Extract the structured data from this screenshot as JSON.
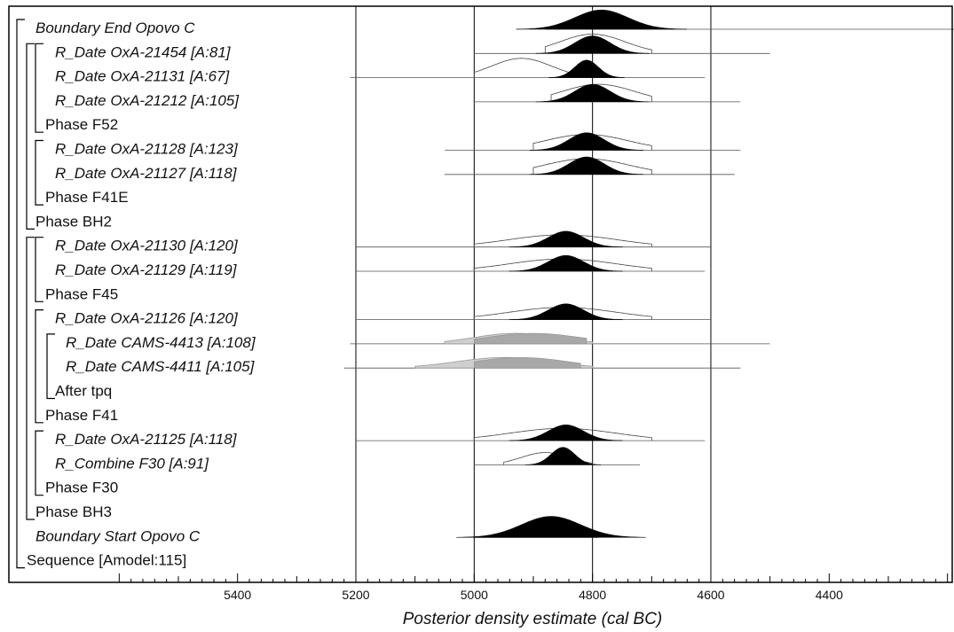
{
  "chart_data": {
    "type": "oxcal-multiplot",
    "xlabel": "Posterior density estimate (cal BC)",
    "xlim": [
      5600,
      4000
    ],
    "x_major_ticks": [
      5400,
      5200,
      5000,
      4800,
      4600,
      4400
    ],
    "x_tick_labels": [
      "5400",
      "5200",
      "5000",
      "4800",
      "4600",
      "4400"
    ],
    "gridlines": [
      5200,
      5000,
      4800,
      4600
    ],
    "rows": [
      {
        "label": "Boundary End Opovo C",
        "italic": true,
        "indent": 1,
        "type": "boundary",
        "span": [
          4880,
          4000
        ],
        "post": {
          "center": 4785,
          "width": 45,
          "height": 0.55
        }
      },
      {
        "label": "R_Date OxA-21454 [A:81]",
        "italic": true,
        "indent": 3,
        "type": "date",
        "span": [
          5000,
          4500
        ],
        "prior": {
          "center": 4800,
          "width": 55,
          "height": 0.55,
          "start": 4880,
          "end": 4700
        },
        "post": {
          "center": 4800,
          "width": 30,
          "height": 0.5
        }
      },
      {
        "label": "R_Date OxA-21131 [A:67]",
        "italic": true,
        "indent": 3,
        "type": "date",
        "span": [
          5210,
          4610
        ],
        "prior": {
          "center": 4920,
          "width": 50,
          "height": 0.55,
          "start": 5000,
          "end": 4810
        },
        "post": {
          "center": 4810,
          "width": 20,
          "height": 0.5
        }
      },
      {
        "label": "R_Date OxA-21212 [A:105]",
        "italic": true,
        "indent": 3,
        "type": "date",
        "span": [
          5000,
          4550
        ],
        "prior": {
          "center": 4790,
          "width": 60,
          "height": 0.5,
          "start": 4870,
          "end": 4700
        },
        "post": {
          "center": 4800,
          "width": 30,
          "height": 0.5
        }
      },
      {
        "label": "Phase F52",
        "italic": false,
        "indent": 2,
        "type": "phase"
      },
      {
        "label": "R_Date OxA-21128 [A:123]",
        "italic": true,
        "indent": 3,
        "type": "date",
        "span": [
          5050,
          4550
        ],
        "prior": {
          "center": 4810,
          "width": 70,
          "height": 0.45,
          "start": 4900,
          "end": 4700
        },
        "post": {
          "center": 4810,
          "width": 30,
          "height": 0.5
        }
      },
      {
        "label": "R_Date OxA-21127 [A:118]",
        "italic": true,
        "indent": 3,
        "type": "date",
        "span": [
          5050,
          4560
        ],
        "prior": {
          "center": 4810,
          "width": 70,
          "height": 0.45,
          "start": 4900,
          "end": 4700
        },
        "post": {
          "center": 4810,
          "width": 30,
          "height": 0.5
        }
      },
      {
        "label": "Phase F41E",
        "italic": false,
        "indent": 2,
        "type": "phase"
      },
      {
        "label": "Phase BH2",
        "italic": false,
        "indent": 1,
        "type": "phase"
      },
      {
        "label": "R_Date OxA-21130 [A:120]",
        "italic": true,
        "indent": 3,
        "type": "date",
        "span": [
          5200,
          4600
        ],
        "prior": {
          "center": 4850,
          "width": 90,
          "height": 0.35,
          "start": 5000,
          "end": 4700
        },
        "post": {
          "center": 4845,
          "width": 30,
          "height": 0.45
        }
      },
      {
        "label": "R_Date OxA-21129 [A:119]",
        "italic": true,
        "indent": 3,
        "type": "date",
        "span": [
          5200,
          4610
        ],
        "prior": {
          "center": 4850,
          "width": 90,
          "height": 0.35,
          "start": 5000,
          "end": 4700
        },
        "post": {
          "center": 4845,
          "width": 30,
          "height": 0.45
        }
      },
      {
        "label": "Phase F45",
        "italic": false,
        "indent": 2,
        "type": "phase"
      },
      {
        "label": "R_Date OxA-21126 [A:120]",
        "italic": true,
        "indent": 3,
        "type": "date",
        "span": [
          5200,
          4600
        ],
        "prior": {
          "center": 4850,
          "width": 90,
          "height": 0.35,
          "start": 5000,
          "end": 4700
        },
        "post": {
          "center": 4845,
          "width": 30,
          "height": 0.45
        }
      },
      {
        "label": "R_Date CAMS-4413 [A:108]",
        "italic": true,
        "indent": 4,
        "type": "date-gray",
        "span": [
          5210,
          4500
        ],
        "prior": {
          "center": 4930,
          "width": 70,
          "height": 0.3,
          "start": 5050,
          "end": 4800
        },
        "post": {
          "center": 4900,
          "width": 80,
          "height": 0.3,
          "start": 5000,
          "end": 4810
        }
      },
      {
        "label": "R_Date CAMS-4411 [A:105]",
        "italic": true,
        "indent": 4,
        "type": "date-gray",
        "span": [
          5220,
          4550
        ],
        "prior": {
          "center": 4950,
          "width": 80,
          "height": 0.3,
          "start": 5100,
          "end": 4800
        },
        "post": {
          "center": 4920,
          "width": 80,
          "height": 0.3,
          "start": 5000,
          "end": 4820
        }
      },
      {
        "label": "After tpq",
        "italic": false,
        "indent": 3,
        "type": "phase"
      },
      {
        "label": "Phase F41",
        "italic": false,
        "indent": 2,
        "type": "phase"
      },
      {
        "label": "R_Date OxA-21125 [A:118]",
        "italic": true,
        "indent": 3,
        "type": "date",
        "span": [
          5200,
          4610
        ],
        "prior": {
          "center": 4850,
          "width": 90,
          "height": 0.35,
          "start": 5000,
          "end": 4700
        },
        "post": {
          "center": 4845,
          "width": 30,
          "height": 0.45
        }
      },
      {
        "label": "R_Combine F30 [A:91]",
        "italic": true,
        "indent": 3,
        "type": "date",
        "span": [
          5000,
          4720
        ],
        "prior": {
          "center": 4880,
          "width": 40,
          "height": 0.35,
          "start": 4950,
          "end": 4800
        },
        "post": {
          "center": 4850,
          "width": 20,
          "height": 0.5
        }
      },
      {
        "label": "Phase F30",
        "italic": false,
        "indent": 2,
        "type": "phase"
      },
      {
        "label": "Phase BH3",
        "italic": false,
        "indent": 1,
        "type": "phase"
      },
      {
        "label": "Boundary Start Opovo C",
        "italic": true,
        "indent": 1,
        "type": "boundary",
        "span": [
          5000,
          4790
        ],
        "post": {
          "center": 4870,
          "width": 50,
          "height": 0.6
        }
      },
      {
        "label": "Sequence [Amodel:115]",
        "italic": false,
        "indent": 0,
        "type": "phase"
      }
    ],
    "brackets": [
      {
        "from": 0,
        "to": 22,
        "level": 0
      },
      {
        "from": 1,
        "to": 8,
        "level": 1
      },
      {
        "from": 1,
        "to": 4,
        "level": 2
      },
      {
        "from": 5,
        "to": 7,
        "level": 2
      },
      {
        "from": 9,
        "to": 20,
        "level": 1
      },
      {
        "from": 9,
        "to": 11,
        "level": 2
      },
      {
        "from": 12,
        "to": 16,
        "level": 2
      },
      {
        "from": 13,
        "to": 15,
        "level": 3
      },
      {
        "from": 17,
        "to": 19,
        "level": 2
      }
    ]
  },
  "colors": {
    "posterior": "#000000",
    "prior_outline": "#444444",
    "gray_fill": "#a8a8a8",
    "span_line": "#555555",
    "frame": "#000000"
  }
}
